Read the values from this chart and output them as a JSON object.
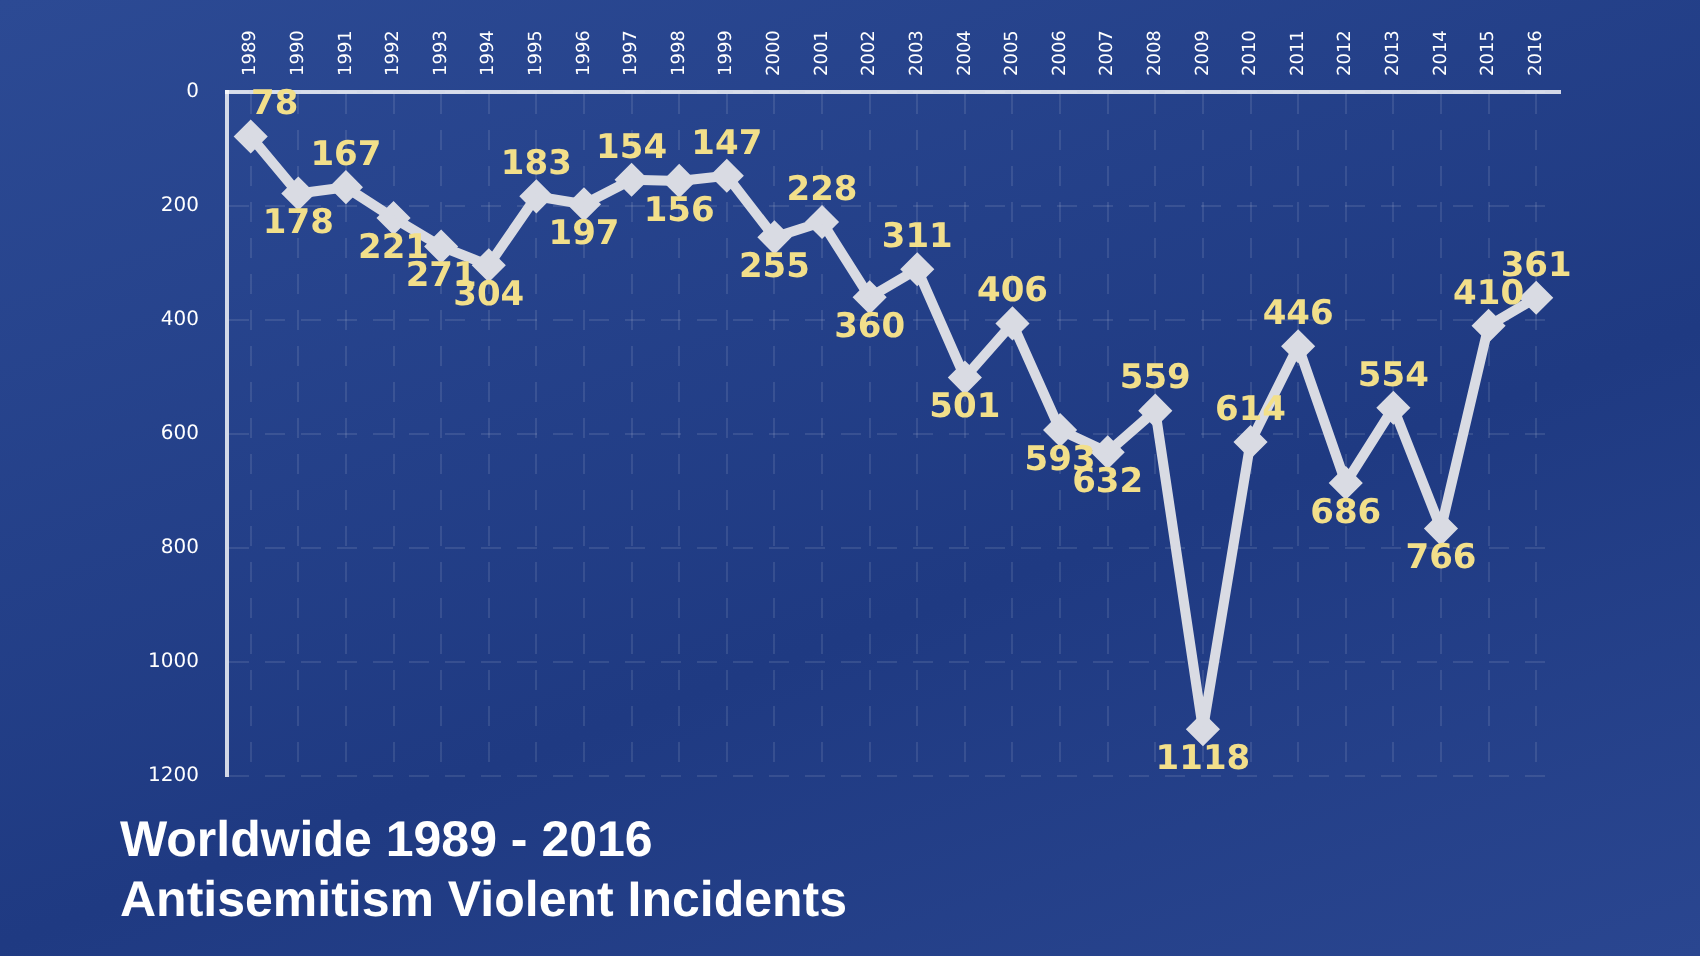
{
  "chart_data": {
    "type": "line",
    "title": "Antisemitism Violent Incidents",
    "subtitle": "Worldwide 1989 - 2016",
    "categories": [
      "1989",
      "1990",
      "1991",
      "1992",
      "1993",
      "1994",
      "1995",
      "1996",
      "1997",
      "1998",
      "1999",
      "2000",
      "2001",
      "2002",
      "2003",
      "2004",
      "2005",
      "2006",
      "2007",
      "2008",
      "2009",
      "2010",
      "2011",
      "2012",
      "2013",
      "2014",
      "2015",
      "2016"
    ],
    "series": [
      {
        "color": "#d9dbe3",
        "values": [
          78,
          178,
          167,
          221,
          271,
          304,
          183,
          197,
          154,
          156,
          147,
          255,
          228,
          360,
          311,
          501,
          406,
          593,
          632,
          559,
          1118,
          614,
          446,
          686,
          554,
          766,
          410,
          361
        ]
      }
    ],
    "ylim": [
      1200,
      0
    ],
    "yticks": [
      0,
      200,
      400,
      600,
      800,
      1000,
      1200
    ],
    "grid": true,
    "marker": "diamond",
    "line_style": "solid",
    "data_labels": true,
    "legend": false
  }
}
